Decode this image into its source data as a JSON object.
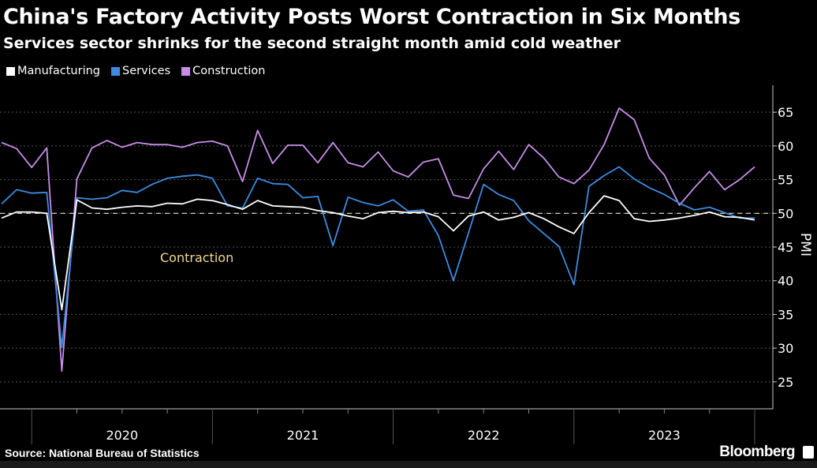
{
  "title": "China's Factory Activity Posts Worst Contraction in Six Months",
  "subtitle": "Services sector shrinks for the second straight month amid cold weather",
  "source": "Source: National Bureau of Statistics",
  "brand": "Bloomberg",
  "chart_data": {
    "type": "line",
    "x_start": "2019-10",
    "x_end": "2023-12",
    "frequency": "monthly",
    "xtick_labels": [
      "2020",
      "2021",
      "2022",
      "2023"
    ],
    "ylabel": "PMI",
    "ylim": [
      21,
      69
    ],
    "yticks": [
      25,
      30,
      35,
      40,
      45,
      50,
      55,
      60,
      65
    ],
    "y_axis_side": "right",
    "grid": "horizontal dotted",
    "legend_placement": "top-left",
    "reference_line": {
      "value": 50,
      "style": "dashed"
    },
    "annotation": {
      "text": "Contraction",
      "color": "#f2dc8c"
    },
    "series": [
      {
        "name": "Manufacturing",
        "color": "#ffffff",
        "values": [
          49.3,
          50.2,
          50.2,
          50.0,
          35.7,
          52.0,
          50.8,
          50.6,
          50.9,
          51.1,
          51.0,
          51.5,
          51.4,
          52.1,
          51.9,
          51.3,
          50.6,
          51.9,
          51.1,
          51.0,
          50.9,
          50.4,
          50.1,
          49.6,
          49.2,
          50.1,
          50.3,
          50.1,
          50.2,
          49.5,
          47.4,
          49.6,
          50.2,
          49.0,
          49.4,
          50.1,
          49.2,
          48.0,
          47.0,
          50.1,
          52.6,
          51.9,
          49.2,
          48.8,
          49.0,
          49.3,
          49.7,
          50.2,
          49.5,
          49.4,
          49.0
        ]
      },
      {
        "name": "Services",
        "color": "#3d8be0",
        "values": [
          51.4,
          53.5,
          53.0,
          53.1,
          30.1,
          52.3,
          52.1,
          52.3,
          53.4,
          53.1,
          54.3,
          55.2,
          55.5,
          55.7,
          55.2,
          51.1,
          50.8,
          55.2,
          54.4,
          54.3,
          52.3,
          52.5,
          45.2,
          52.4,
          51.6,
          51.1,
          52.0,
          50.3,
          50.5,
          46.7,
          40.0,
          47.1,
          54.3,
          52.8,
          51.9,
          48.9,
          47.0,
          45.1,
          39.4,
          54.0,
          55.6,
          56.9,
          55.1,
          53.8,
          52.8,
          51.5,
          50.5,
          50.9,
          50.1,
          49.3,
          49.3
        ]
      },
      {
        "name": "Construction",
        "color": "#c78ee8",
        "values": [
          60.5,
          59.6,
          56.8,
          59.7,
          26.6,
          55.1,
          59.7,
          60.8,
          59.8,
          60.5,
          60.2,
          60.2,
          59.8,
          60.5,
          60.7,
          60.0,
          54.7,
          62.3,
          57.4,
          60.1,
          60.1,
          57.5,
          60.5,
          57.5,
          56.9,
          59.1,
          56.3,
          55.4,
          57.6,
          58.1,
          52.7,
          52.2,
          56.6,
          59.2,
          56.5,
          60.2,
          58.2,
          55.4,
          54.4,
          56.4,
          60.2,
          65.6,
          63.9,
          58.2,
          55.7,
          51.2,
          53.8,
          56.2,
          53.5,
          55.0,
          56.9
        ]
      }
    ]
  }
}
